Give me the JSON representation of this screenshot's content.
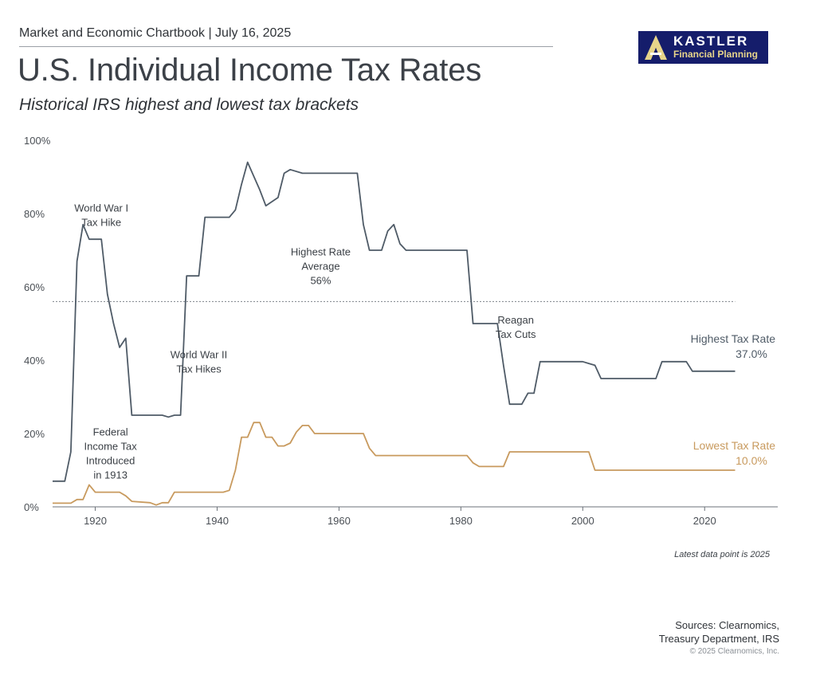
{
  "header": {
    "text": "Market and Economic Chartbook | July 16, 2025",
    "title": "U.S. Individual Income Tax Rates",
    "subtitle": "Historical IRS highest and lowest tax brackets"
  },
  "logo": {
    "name": "KASTLER",
    "sub": "Financial Planning",
    "colors": {
      "bg": "#151d6b",
      "mark": "#e6d48a"
    }
  },
  "footer": {
    "note": "Latest data point is 2025",
    "sources_line1": "Sources: Clearnomics,",
    "sources_line2": "Treasury Department, IRS",
    "copyright": "© 2025 Clearnomics, Inc."
  },
  "chart_data": {
    "type": "line",
    "xlim": [
      1913,
      2032
    ],
    "ylim": [
      0,
      100
    ],
    "x_ticks": [
      1920,
      1940,
      1960,
      1980,
      2000,
      2020
    ],
    "y_ticks": [
      0,
      20,
      40,
      60,
      80,
      100
    ],
    "y_tick_labels": [
      "0%",
      "20%",
      "40%",
      "60%",
      "80%",
      "100%"
    ],
    "grid": false,
    "series": [
      {
        "name": "Highest Tax Rate",
        "label_value": "37.0%",
        "color": "#4f5b67",
        "points": [
          [
            1913,
            7
          ],
          [
            1915,
            7
          ],
          [
            1916,
            15
          ],
          [
            1917,
            67
          ],
          [
            1918,
            77
          ],
          [
            1919,
            73
          ],
          [
            1921,
            73
          ],
          [
            1922,
            58
          ],
          [
            1923,
            50
          ],
          [
            1924,
            43.5
          ],
          [
            1925,
            46
          ],
          [
            1926,
            25
          ],
          [
            1931,
            25
          ],
          [
            1932,
            24.5
          ],
          [
            1933,
            25
          ],
          [
            1934,
            25
          ],
          [
            1935,
            63
          ],
          [
            1937,
            63
          ],
          [
            1938,
            79
          ],
          [
            1942,
            79
          ],
          [
            1943,
            81
          ],
          [
            1944,
            88
          ],
          [
            1945,
            94
          ],
          [
            1947,
            86.45
          ],
          [
            1948,
            82.13
          ],
          [
            1950,
            84.36
          ],
          [
            1951,
            91
          ],
          [
            1952,
            92
          ],
          [
            1954,
            91
          ],
          [
            1963,
            91
          ],
          [
            1964,
            77
          ],
          [
            1965,
            70
          ],
          [
            1967,
            70
          ],
          [
            1968,
            75.25
          ],
          [
            1969,
            77
          ],
          [
            1970,
            71.75
          ],
          [
            1971,
            70
          ],
          [
            1981,
            70
          ],
          [
            1982,
            50
          ],
          [
            1986,
            50
          ],
          [
            1987,
            38.5
          ],
          [
            1988,
            28
          ],
          [
            1990,
            28
          ],
          [
            1991,
            31
          ],
          [
            1992,
            31
          ],
          [
            1993,
            39.6
          ],
          [
            2000,
            39.6
          ],
          [
            2001,
            39.1
          ],
          [
            2002,
            38.6
          ],
          [
            2003,
            35
          ],
          [
            2012,
            35
          ],
          [
            2013,
            39.6
          ],
          [
            2017,
            39.6
          ],
          [
            2018,
            37
          ],
          [
            2025,
            37
          ]
        ]
      },
      {
        "name": "Lowest Tax Rate",
        "label_value": "10.0%",
        "color": "#c89a5e",
        "points": [
          [
            1913,
            1
          ],
          [
            1916,
            1
          ],
          [
            1917,
            2
          ],
          [
            1918,
            2
          ],
          [
            1919,
            6
          ],
          [
            1920,
            4
          ],
          [
            1924,
            4
          ],
          [
            1925,
            3
          ],
          [
            1926,
            1.5
          ],
          [
            1929,
            1.125
          ],
          [
            1930,
            0.5
          ],
          [
            1931,
            1.125
          ],
          [
            1932,
            1.125
          ],
          [
            1933,
            4
          ],
          [
            1941,
            4
          ],
          [
            1942,
            4.5
          ],
          [
            1943,
            10
          ],
          [
            1944,
            19
          ],
          [
            1945,
            19
          ],
          [
            1946,
            23
          ],
          [
            1947,
            23
          ],
          [
            1948,
            19
          ],
          [
            1949,
            19
          ],
          [
            1950,
            16.6
          ],
          [
            1951,
            16.6
          ],
          [
            1952,
            17.4
          ],
          [
            1953,
            20.4
          ],
          [
            1954,
            22.2
          ],
          [
            1955,
            22.2
          ],
          [
            1956,
            20
          ],
          [
            1964,
            20
          ],
          [
            1965,
            16
          ],
          [
            1966,
            14
          ],
          [
            1981,
            14
          ],
          [
            1982,
            12
          ],
          [
            1983,
            11
          ],
          [
            1987,
            11
          ],
          [
            1988,
            15
          ],
          [
            2000,
            15
          ],
          [
            2001,
            15
          ],
          [
            2002,
            10
          ],
          [
            2025,
            10
          ]
        ]
      }
    ],
    "reference_line": {
      "value": 56,
      "label_line1": "Highest Rate",
      "label_line2": "Average",
      "label_line3": "56%"
    },
    "annotations": [
      {
        "id": "ww1",
        "lines": [
          "World War I",
          "Tax Hike"
        ],
        "x": 1921,
        "y": 80.5
      },
      {
        "id": "ww2",
        "lines": [
          "World War II",
          "Tax Hikes"
        ],
        "x": 1937,
        "y": 40.5
      },
      {
        "id": "fed",
        "lines": [
          "Federal",
          "Income Tax",
          "Introduced",
          "in 1913"
        ],
        "x": 1922.5,
        "y": 19.5
      },
      {
        "id": "reagan",
        "lines": [
          "Reagan",
          "Tax Cuts"
        ],
        "x": 1989,
        "y": 50
      }
    ]
  }
}
